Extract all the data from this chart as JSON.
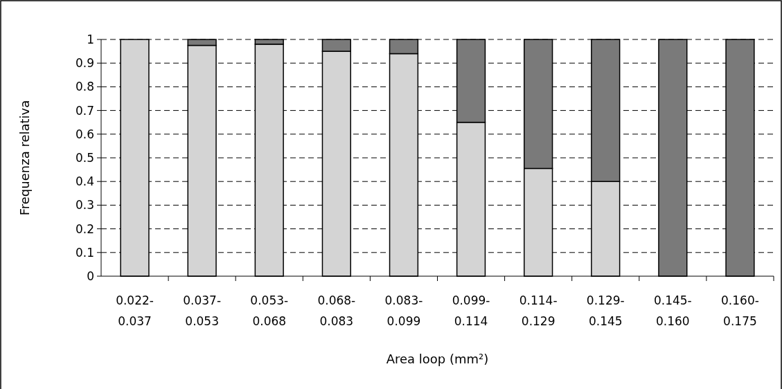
{
  "chart_data": {
    "type": "bar",
    "stacked": true,
    "xlabel": "Area loop (mm²)",
    "ylabel": "Frequenza relativa",
    "categories": [
      "0.022-0.037",
      "0.037-0.053",
      "0.053-0.068",
      "0.068-0.083",
      "0.083-0.099",
      "0.099-0.114",
      "0.114-0.129",
      "0.129-0.145",
      "0.145-0.160",
      "0.160-0.175"
    ],
    "series": [
      {
        "color": "#d4d4d4",
        "values": [
          1,
          0.975,
          0.98,
          0.95,
          0.94,
          0.65,
          0.455,
          0.4,
          0,
          0
        ]
      },
      {
        "color": "#7a7a7a",
        "values": [
          0,
          0.025,
          0.02,
          0.05,
          0.06,
          0.35,
          0.545,
          0.6,
          1,
          1
        ]
      }
    ],
    "ylim": [
      0,
      1
    ],
    "yticks": [
      0,
      0.1,
      0.2,
      0.3,
      0.4,
      0.5,
      0.6,
      0.7,
      0.8,
      0.9,
      1
    ],
    "grid": "y",
    "line_style": "dashed"
  }
}
